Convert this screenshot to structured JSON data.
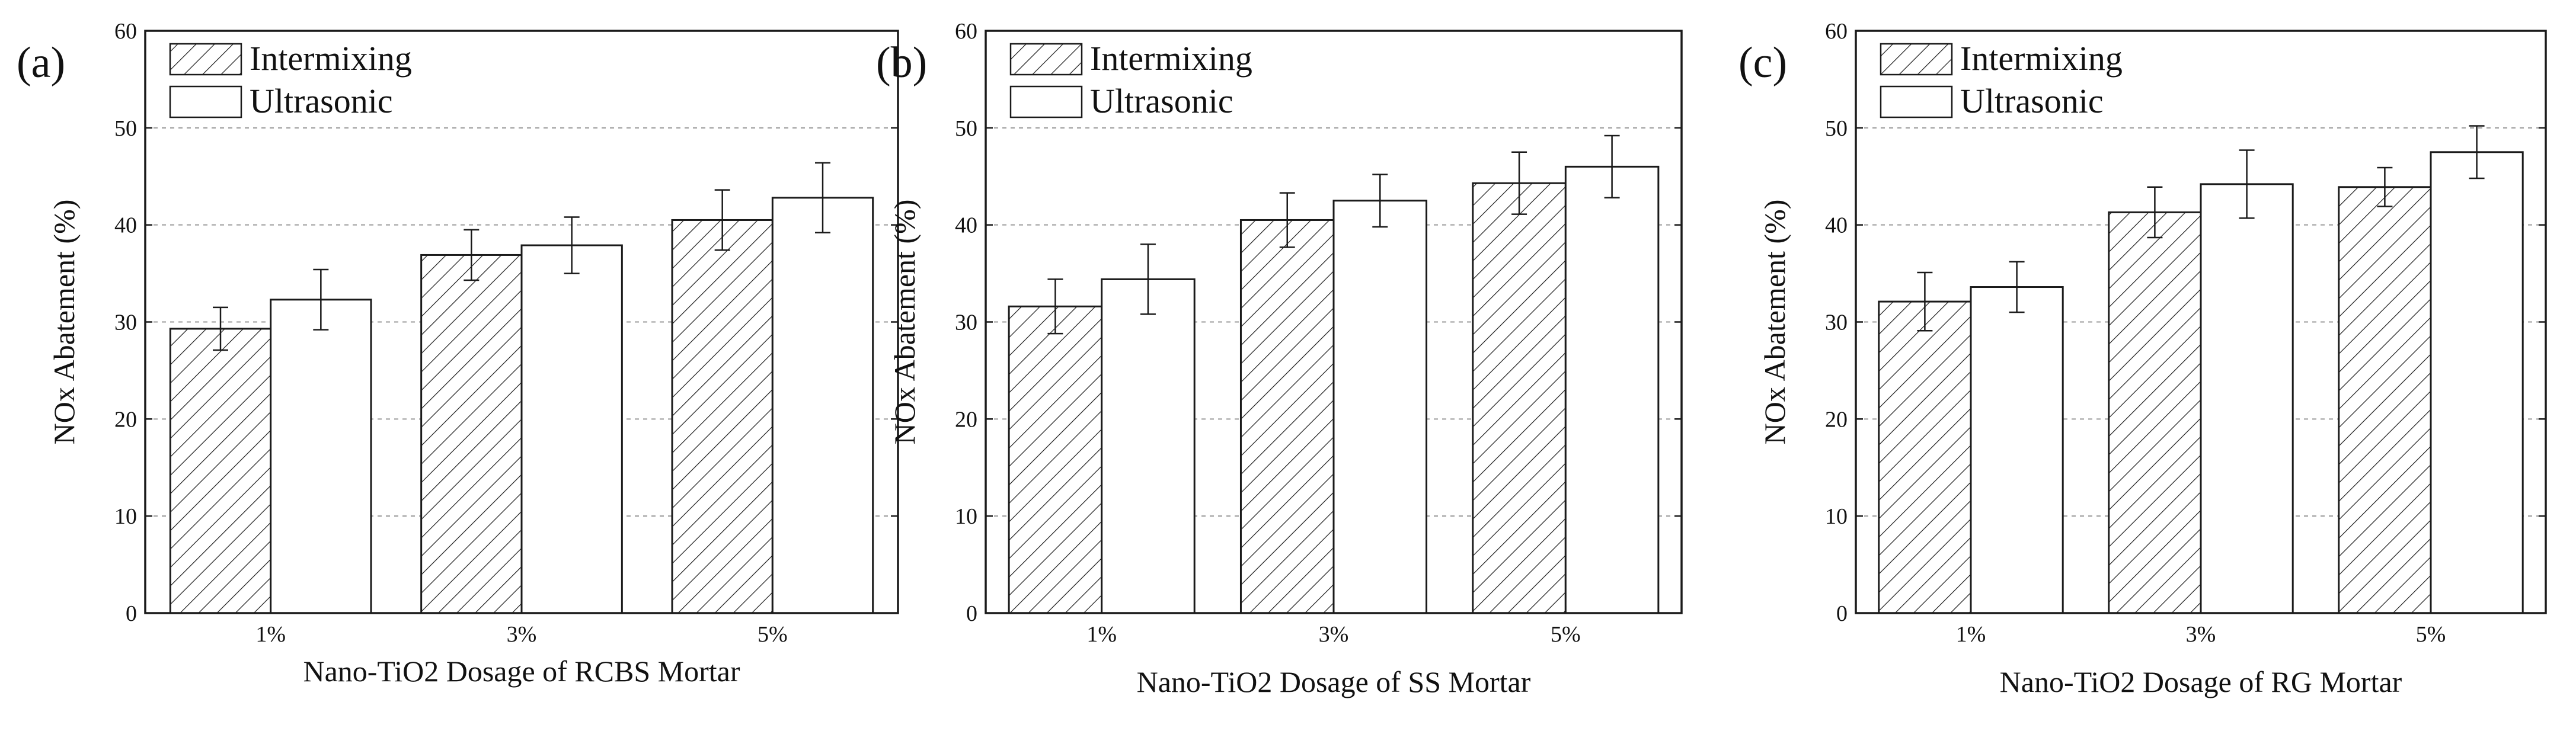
{
  "figure": {
    "legend_position": "top-left",
    "colors": {
      "stroke": "#1a1a1a",
      "grid": "#9a9a9a",
      "bar_fill": "#ffffff",
      "hatch": "#1a1a1a"
    }
  },
  "chart_data": [
    {
      "type": "bar",
      "panel_label": "(a)",
      "title": "",
      "xlabel": "Nano-TiO2 Dosage of RCBS Mortar",
      "ylabel": "NOx Abatement (%)",
      "ylim": [
        0,
        60
      ],
      "yticks": [
        0,
        10,
        20,
        30,
        40,
        50,
        60
      ],
      "grid": true,
      "categories": [
        "1%",
        "3%",
        "5%"
      ],
      "series": [
        {
          "name": "Intermixing",
          "pattern": "hatched",
          "values": [
            29.3,
            36.9,
            40.5
          ],
          "errors": [
            2.2,
            2.6,
            3.1
          ]
        },
        {
          "name": "Ultrasonic",
          "pattern": "plain",
          "values": [
            32.3,
            37.9,
            42.8
          ],
          "errors": [
            3.1,
            2.9,
            3.6
          ]
        }
      ]
    },
    {
      "type": "bar",
      "panel_label": "(b)",
      "title": "",
      "xlabel": "Nano-TiO2 Dosage of SS Mortar",
      "ylabel": "NOx Abatement (%)",
      "ylim": [
        0,
        60
      ],
      "yticks": [
        0,
        10,
        20,
        30,
        40,
        50,
        60
      ],
      "grid": true,
      "categories": [
        "1%",
        "3%",
        "5%"
      ],
      "series": [
        {
          "name": "Intermixing",
          "pattern": "hatched",
          "values": [
            31.6,
            40.5,
            44.3
          ],
          "errors": [
            2.8,
            2.8,
            3.2
          ]
        },
        {
          "name": "Ultrasonic",
          "pattern": "plain",
          "values": [
            34.4,
            42.5,
            46.0
          ],
          "errors": [
            3.6,
            2.7,
            3.2
          ]
        }
      ]
    },
    {
      "type": "bar",
      "panel_label": "(c)",
      "title": "",
      "xlabel": "Nano-TiO2 Dosage of RG Mortar",
      "ylabel": "NOx Abatement (%)",
      "ylim": [
        0,
        60
      ],
      "yticks": [
        0,
        10,
        20,
        30,
        40,
        50,
        60
      ],
      "grid": true,
      "categories": [
        "1%",
        "3%",
        "5%"
      ],
      "series": [
        {
          "name": "Intermixing",
          "pattern": "hatched",
          "values": [
            32.1,
            41.3,
            43.9
          ],
          "errors": [
            3.0,
            2.6,
            2.0
          ]
        },
        {
          "name": "Ultrasonic",
          "pattern": "plain",
          "values": [
            33.6,
            44.2,
            47.5
          ],
          "errors": [
            2.6,
            3.5,
            2.7
          ]
        }
      ]
    }
  ]
}
